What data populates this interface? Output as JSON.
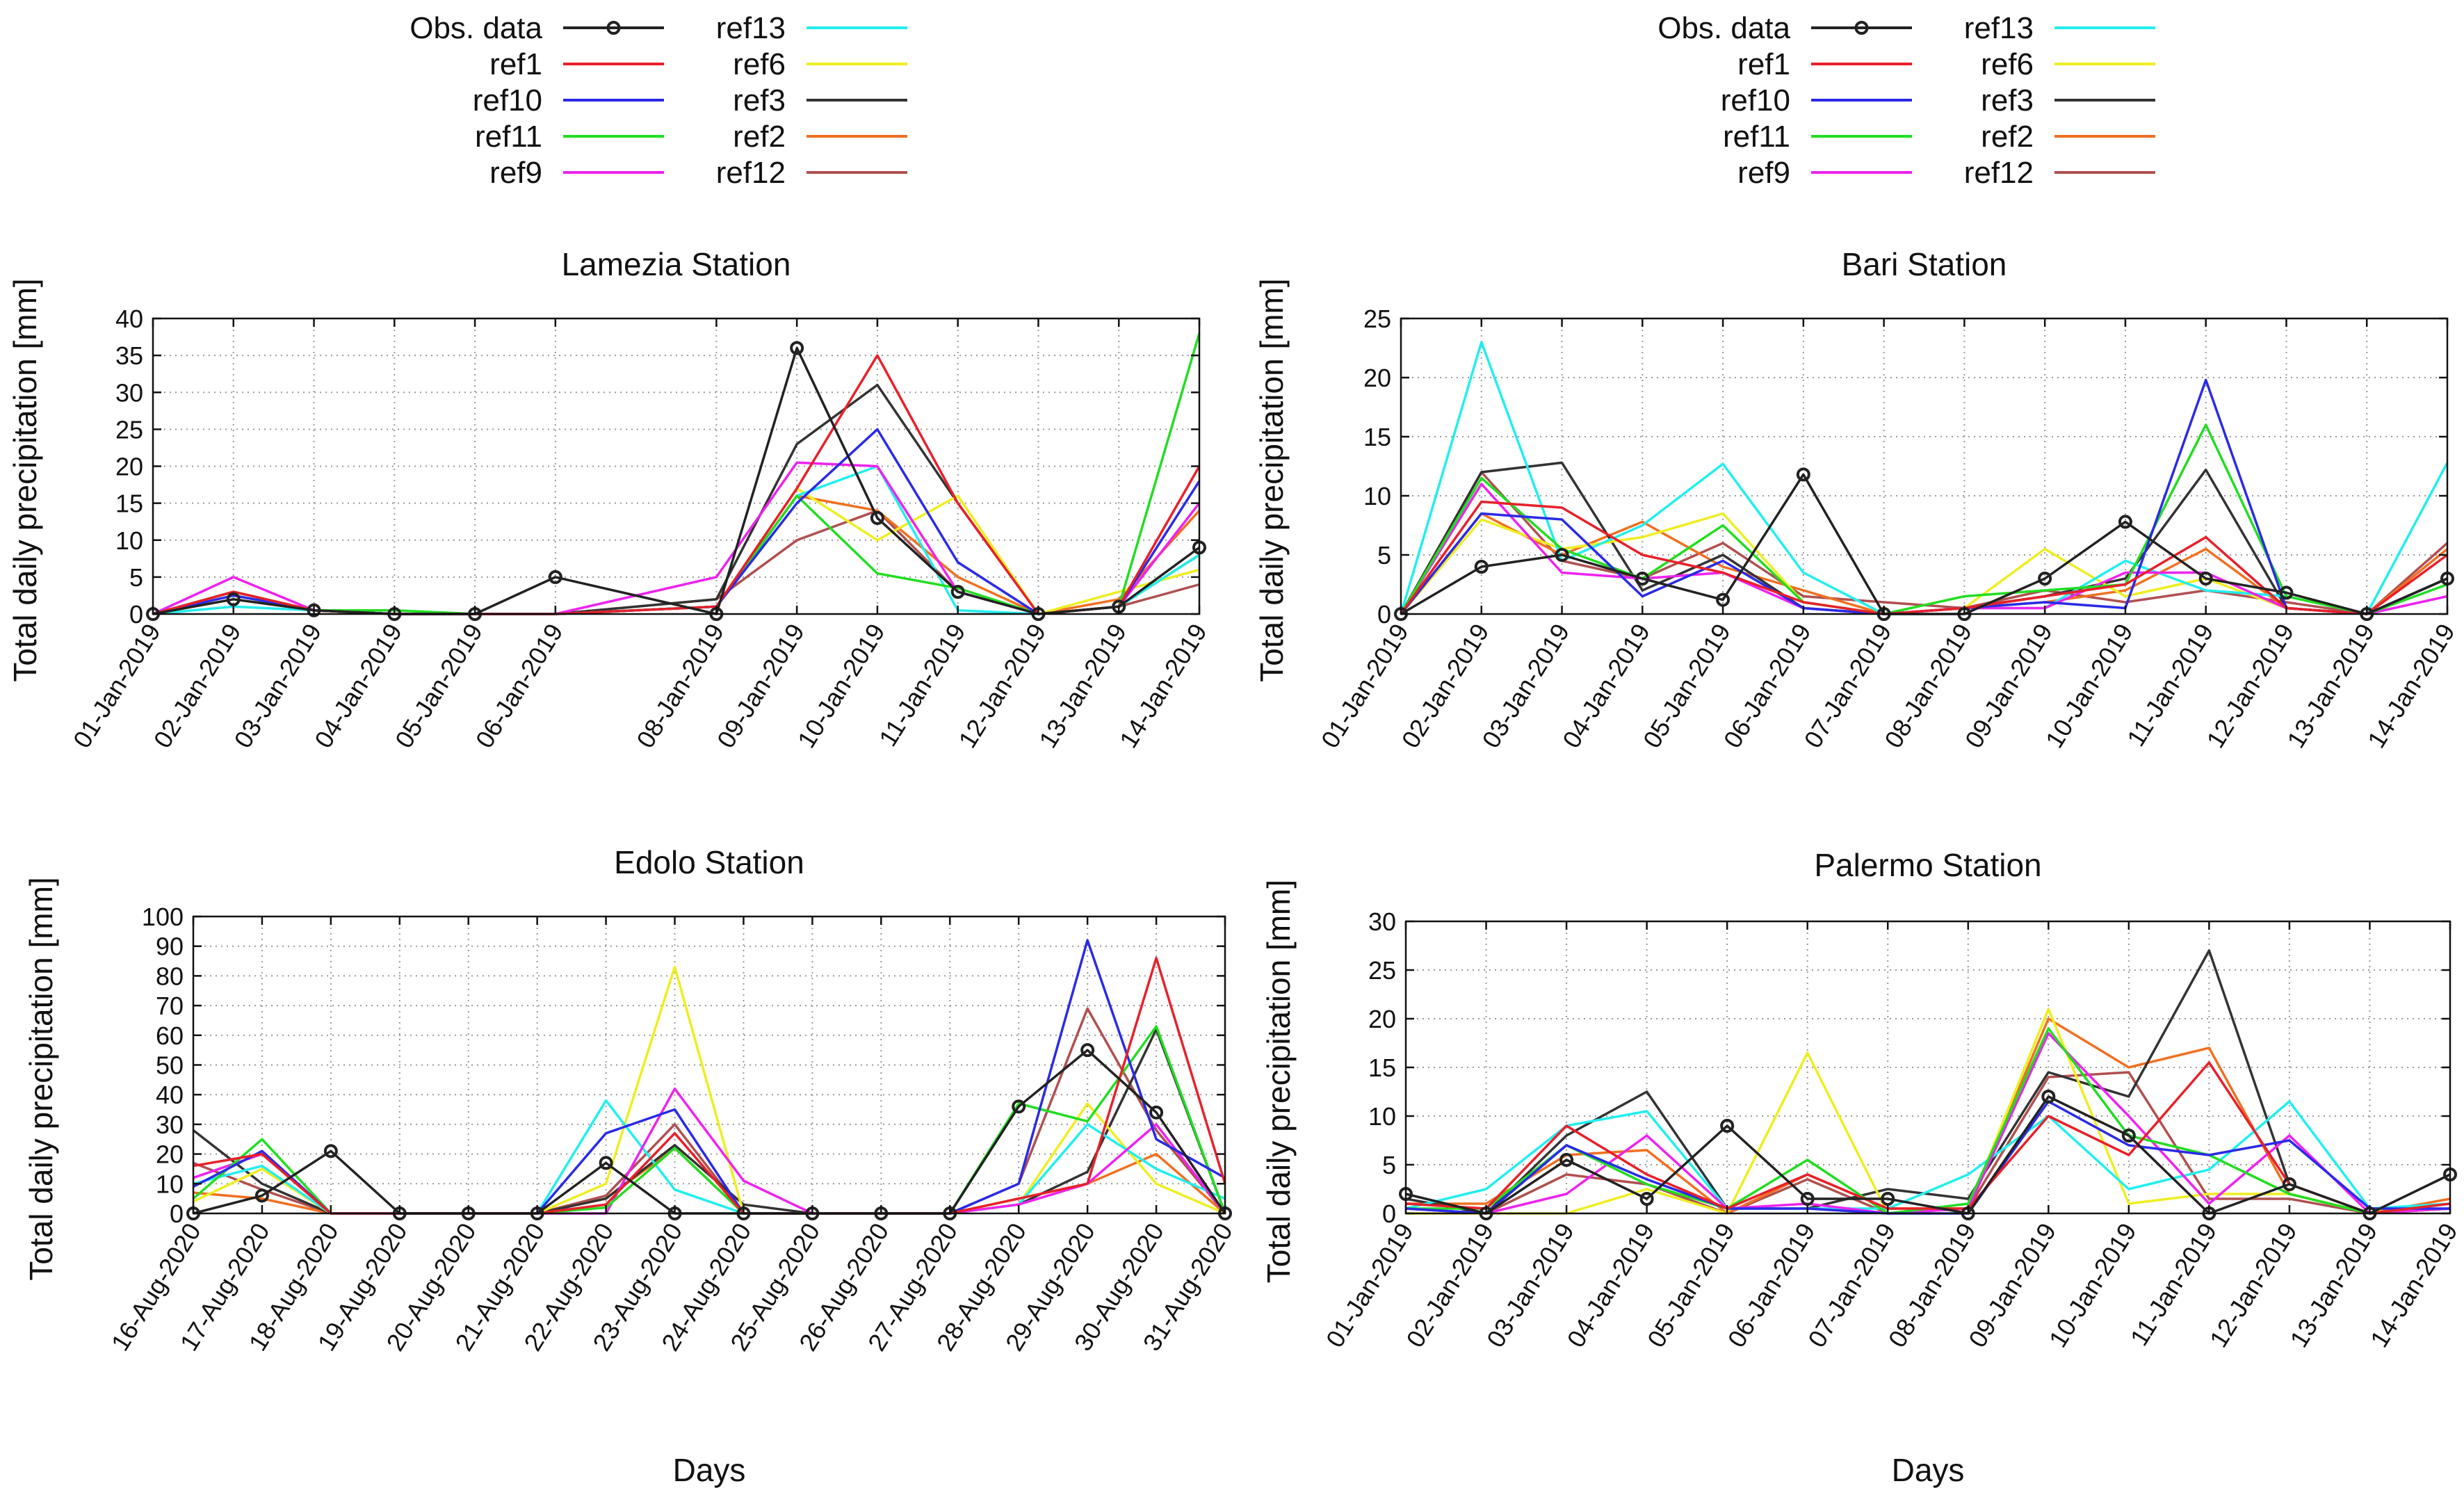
{
  "figure": {
    "legends": [
      {
        "entries": [
          "Obs. data",
          "ref1",
          "ref10",
          "ref11",
          "ref9",
          "ref13",
          "ref6",
          "ref3",
          "ref2",
          "ref12"
        ]
      },
      {
        "entries": [
          "Obs. data",
          "ref1",
          "ref10",
          "ref11",
          "ref9",
          "ref13",
          "ref6",
          "ref3",
          "ref2",
          "ref12"
        ]
      }
    ],
    "series_colors": {
      "Obs. data": "#222222",
      "ref1": "#e8202a",
      "ref10": "#2a2ae8",
      "ref11": "#22dd22",
      "ref9": "#ee22ee",
      "ref13": "#22eeee",
      "ref6": "#eeee22",
      "ref3": "#333333",
      "ref2": "#f07020",
      "ref12": "#b05050"
    }
  },
  "chart_data": [
    {
      "type": "line",
      "title": "Lamezia Station",
      "xlabel": "",
      "ylabel": "Total daily precipitation [mm]",
      "ylim": [
        0,
        40
      ],
      "yticks": [
        0,
        5,
        10,
        15,
        20,
        25,
        30,
        35,
        40
      ],
      "x": [
        0,
        1,
        2,
        3,
        4,
        5,
        7,
        8,
        9,
        10,
        11,
        12,
        13
      ],
      "xlim": [
        0,
        13
      ],
      "categories": [
        "01-Jan-2019",
        "02-Jan-2019",
        "03-Jan-2019",
        "04-Jan-2019",
        "05-Jan-2019",
        "06-Jan-2019",
        "08-Jan-2019",
        "09-Jan-2019",
        "10-Jan-2019",
        "11-Jan-2019",
        "12-Jan-2019",
        "13-Jan-2019",
        "14-Jan-2019"
      ],
      "series": [
        {
          "name": "Obs. data",
          "values": [
            0,
            2,
            0.5,
            0,
            0,
            5,
            0,
            36,
            13,
            3,
            0,
            1,
            9
          ]
        },
        {
          "name": "ref1",
          "values": [
            0,
            3,
            0.5,
            0,
            0,
            0,
            1,
            17,
            35,
            15,
            0,
            1,
            20
          ]
        },
        {
          "name": "ref10",
          "values": [
            0,
            2.5,
            0.5,
            0,
            0,
            0,
            1,
            15,
            25,
            7,
            0,
            1,
            18
          ]
        },
        {
          "name": "ref11",
          "values": [
            0,
            3,
            0.5,
            0.5,
            0,
            0,
            1,
            16,
            5.5,
            3.5,
            0,
            1,
            38
          ]
        },
        {
          "name": "ref9",
          "values": [
            0,
            5,
            0.5,
            0,
            0,
            0,
            5,
            20.5,
            20,
            3,
            0,
            1,
            15
          ]
        },
        {
          "name": "ref13",
          "values": [
            0,
            1,
            0.5,
            0.5,
            0,
            0,
            1,
            16,
            20,
            0.5,
            0,
            1,
            8
          ]
        },
        {
          "name": "ref6",
          "values": [
            0,
            2,
            0.5,
            0,
            0,
            0,
            1,
            17,
            10,
            16,
            0,
            3,
            6
          ]
        },
        {
          "name": "ref3",
          "values": [
            0,
            3,
            0.5,
            0,
            0,
            0,
            2,
            23,
            31,
            15,
            0,
            1,
            8
          ]
        },
        {
          "name": "ref2",
          "values": [
            0,
            3,
            0.5,
            0,
            0,
            0,
            1,
            16,
            14,
            5,
            0,
            2,
            14
          ]
        },
        {
          "name": "ref12",
          "values": [
            0,
            2,
            0.5,
            0,
            0,
            0,
            2,
            10,
            14,
            3,
            0,
            1,
            4
          ]
        }
      ]
    },
    {
      "type": "line",
      "title": "Bari Station",
      "xlabel": "",
      "ylabel": "Total daily precipitation [mm]",
      "ylim": [
        0,
        25
      ],
      "yticks": [
        0,
        5,
        10,
        15,
        20,
        25
      ],
      "x": [
        0,
        1,
        2,
        3,
        4,
        5,
        6,
        7,
        8,
        9,
        10,
        11,
        12,
        13
      ],
      "xlim": [
        0,
        13
      ],
      "categories": [
        "01-Jan-2019",
        "02-Jan-2019",
        "03-Jan-2019",
        "04-Jan-2019",
        "05-Jan-2019",
        "06-Jan-2019",
        "07-Jan-2019",
        "08-Jan-2019",
        "09-Jan-2019",
        "10-Jan-2019",
        "11-Jan-2019",
        "12-Jan-2019",
        "13-Jan-2019",
        "14-Jan-2019"
      ],
      "series": [
        {
          "name": "Obs. data",
          "values": [
            0,
            4,
            5,
            3,
            1.2,
            11.8,
            0,
            0,
            3,
            7.8,
            3,
            1.8,
            0,
            3
          ]
        },
        {
          "name": "ref1",
          "values": [
            0,
            9.5,
            9,
            5,
            3.5,
            1,
            0,
            0.5,
            1.5,
            2.5,
            6.5,
            0.5,
            0,
            5
          ]
        },
        {
          "name": "ref10",
          "values": [
            0,
            8.5,
            8,
            1.5,
            4.5,
            0.5,
            0,
            0.5,
            1,
            0.5,
            19.8,
            0.5,
            0,
            3
          ]
        },
        {
          "name": "ref11",
          "values": [
            0,
            11.5,
            5.5,
            3,
            7.5,
            1,
            0,
            1.5,
            2,
            2.5,
            16,
            1.5,
            0,
            2.5
          ]
        },
        {
          "name": "ref9",
          "values": [
            0,
            11,
            3.5,
            3,
            3.5,
            0.5,
            0,
            0.5,
            0.5,
            3.5,
            3.5,
            0.5,
            0,
            1.5
          ]
        },
        {
          "name": "ref13",
          "values": [
            0,
            23,
            4.5,
            7.5,
            12.7,
            3.5,
            0,
            0.5,
            0.5,
            4.5,
            2,
            1.5,
            0,
            12.8
          ]
        },
        {
          "name": "ref6",
          "values": [
            0,
            8,
            5.5,
            6.5,
            8.5,
            1,
            0,
            0.5,
            5.5,
            1.5,
            3,
            0.5,
            0,
            3
          ]
        },
        {
          "name": "ref3",
          "values": [
            0,
            12,
            12.8,
            2,
            5,
            0.5,
            0,
            0.5,
            1.5,
            3,
            12.2,
            0.5,
            0,
            3
          ]
        },
        {
          "name": "ref2",
          "values": [
            0,
            8.5,
            5,
            7.8,
            4,
            2,
            0,
            0.5,
            1,
            2,
            5.5,
            0.5,
            0,
            5.5
          ]
        },
        {
          "name": "ref12",
          "values": [
            0,
            12,
            4.5,
            3,
            6,
            1.5,
            1,
            0.5,
            2,
            1,
            2,
            1,
            0,
            6
          ]
        }
      ]
    },
    {
      "type": "line",
      "title": "Edolo Station",
      "xlabel": "Days",
      "ylabel": "Total daily precipitation [mm]",
      "ylim": [
        0,
        100
      ],
      "yticks": [
        0,
        10,
        20,
        30,
        40,
        50,
        60,
        70,
        80,
        90,
        100
      ],
      "x": [
        0,
        1,
        2,
        3,
        4,
        5,
        6,
        7,
        8,
        9,
        10,
        11,
        12,
        13,
        14,
        15
      ],
      "xlim": [
        0,
        15
      ],
      "categories": [
        "16-Aug-2020",
        "17-Aug-2020",
        "18-Aug-2020",
        "19-Aug-2020",
        "20-Aug-2020",
        "21-Aug-2020",
        "22-Aug-2020",
        "23-Aug-2020",
        "24-Aug-2020",
        "25-Aug-2020",
        "26-Aug-2020",
        "27-Aug-2020",
        "28-Aug-2020",
        "29-Aug-2020",
        "30-Aug-2020",
        "31-Aug-2020"
      ],
      "series": [
        {
          "name": "Obs. data",
          "values": [
            0,
            6,
            21,
            0,
            0,
            0,
            17,
            0,
            0,
            0,
            0,
            0,
            36,
            55,
            34,
            0
          ]
        },
        {
          "name": "ref1",
          "values": [
            16,
            20,
            0,
            0,
            0,
            0,
            3,
            27,
            0,
            0,
            0,
            0,
            5,
            10,
            86,
            10
          ]
        },
        {
          "name": "ref10",
          "values": [
            9,
            21,
            0,
            0,
            0,
            0,
            27,
            35,
            0,
            0,
            0,
            0,
            10,
            92,
            25,
            12
          ]
        },
        {
          "name": "ref11",
          "values": [
            5,
            25,
            0,
            0,
            0,
            0,
            2,
            22,
            0,
            0,
            0,
            0,
            37,
            31,
            63,
            0
          ]
        },
        {
          "name": "ref9",
          "values": [
            12,
            20,
            0,
            0,
            0,
            0,
            0,
            42,
            11,
            0,
            0,
            0,
            3,
            10,
            30,
            0
          ]
        },
        {
          "name": "ref13",
          "values": [
            10,
            16,
            0,
            0,
            0,
            0,
            38,
            8,
            0,
            0,
            0,
            0,
            3,
            30,
            15,
            5
          ]
        },
        {
          "name": "ref6",
          "values": [
            4,
            15,
            0,
            0,
            0,
            0,
            10,
            83,
            0,
            0,
            0,
            0,
            3,
            37,
            10,
            0
          ]
        },
        {
          "name": "ref3",
          "values": [
            28,
            10,
            0,
            0,
            0,
            0,
            5,
            23,
            3,
            0,
            0,
            0,
            3,
            14,
            62,
            0
          ]
        },
        {
          "name": "ref2",
          "values": [
            7,
            5,
            0,
            0,
            0,
            0,
            5,
            22,
            0,
            0,
            0,
            0,
            5,
            10,
            20,
            0
          ]
        },
        {
          "name": "ref12",
          "values": [
            17,
            8,
            0,
            0,
            0,
            0,
            6,
            30,
            0,
            0,
            0,
            0,
            10,
            69,
            28,
            0
          ]
        }
      ]
    },
    {
      "type": "line",
      "title": "Palermo Station",
      "xlabel": "Days",
      "ylabel": "Total daily precipitation [mm]",
      "ylim": [
        0,
        30
      ],
      "yticks": [
        0,
        5,
        10,
        15,
        20,
        25,
        30
      ],
      "x": [
        0,
        1,
        2,
        3,
        4,
        5,
        6,
        7,
        8,
        9,
        10,
        11,
        12,
        13
      ],
      "xlim": [
        0,
        13
      ],
      "categories": [
        "01-Jan-2019",
        "02-Jan-2019",
        "03-Jan-2019",
        "04-Jan-2019",
        "05-Jan-2019",
        "06-Jan-2019",
        "07-Jan-2019",
        "08-Jan-2019",
        "09-Jan-2019",
        "10-Jan-2019",
        "11-Jan-2019",
        "12-Jan-2019",
        "13-Jan-2019",
        "14-Jan-2019"
      ],
      "series": [
        {
          "name": "Obs. data",
          "values": [
            2,
            0,
            5.5,
            1.5,
            9,
            1.5,
            1.5,
            0,
            12,
            8,
            0,
            3,
            0,
            4
          ]
        },
        {
          "name": "ref1",
          "values": [
            1,
            0.5,
            9,
            4,
            0.5,
            4,
            0.5,
            0.5,
            10,
            6,
            15.5,
            3,
            0,
            1
          ]
        },
        {
          "name": "ref10",
          "values": [
            0.5,
            0,
            7,
            3.5,
            0.5,
            0.5,
            0,
            0,
            11.5,
            7,
            6,
            7.5,
            0.5,
            0.5
          ]
        },
        {
          "name": "ref11",
          "values": [
            0.5,
            0.5,
            7,
            3,
            0.5,
            5.5,
            0,
            1,
            19,
            8,
            6,
            2,
            0,
            1
          ]
        },
        {
          "name": "ref9",
          "values": [
            0.5,
            0,
            2,
            8,
            0.5,
            1,
            0,
            0.5,
            18.5,
            10,
            1,
            8,
            0,
            0.5
          ]
        },
        {
          "name": "ref13",
          "values": [
            0.5,
            2.5,
            9,
            10.5,
            0.5,
            0.5,
            0.5,
            4,
            10,
            2.5,
            4.5,
            11.5,
            0.5,
            1
          ]
        },
        {
          "name": "ref6",
          "values": [
            0,
            0,
            0,
            2.5,
            0,
            16.5,
            0,
            0.5,
            21,
            1,
            2,
            2,
            0,
            0.5
          ]
        },
        {
          "name": "ref3",
          "values": [
            1.5,
            0,
            8,
            12.5,
            0.5,
            0.5,
            2.5,
            1.5,
            14.5,
            12,
            27,
            3,
            0,
            0.5
          ]
        },
        {
          "name": "ref2",
          "values": [
            1,
            1,
            6,
            6.5,
            0,
            4,
            0.5,
            0.5,
            20,
            15,
            17,
            2,
            0,
            1.5
          ]
        },
        {
          "name": "ref12",
          "values": [
            0.5,
            0,
            4,
            3,
            0,
            3.5,
            0,
            0.5,
            14,
            14.5,
            1.5,
            1.5,
            0,
            0.5
          ]
        }
      ]
    }
  ]
}
